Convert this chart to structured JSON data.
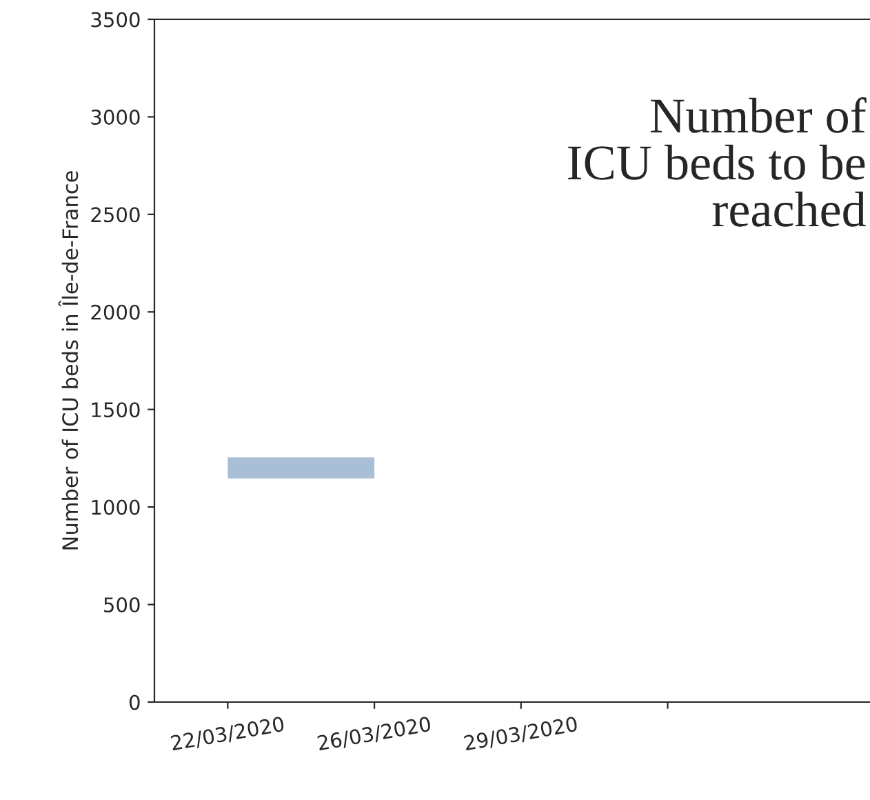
{
  "chart_data": {
    "type": "line",
    "categories": [
      "22/03/2020",
      "26/03/2020",
      "29/03/2020",
      null
    ],
    "series": [
      {
        "color": "#a9bfd6",
        "values": [
          1200,
          1200,
          null,
          null
        ]
      }
    ],
    "ylim": [
      0,
      3500
    ],
    "yticks": [
      0,
      500,
      1000,
      1500,
      2000,
      2500,
      3000,
      3500
    ],
    "ylabel": "Number of ICU beds in Île-de-France",
    "annotations": [
      "Number of\nICU beds to be\nreached"
    ]
  }
}
